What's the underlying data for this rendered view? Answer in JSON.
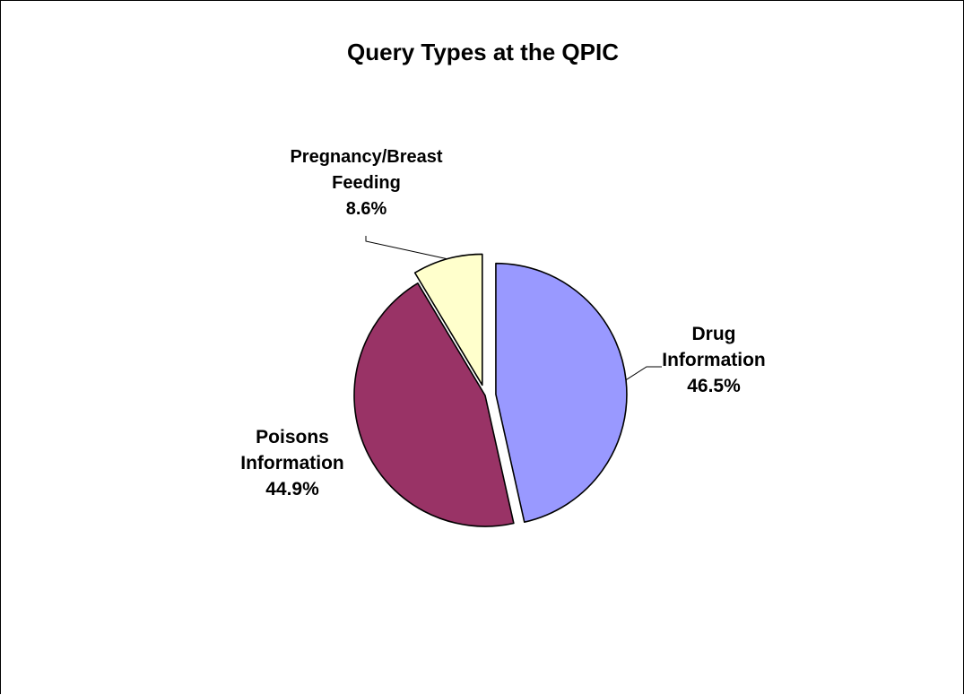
{
  "chart_data": {
    "type": "pie",
    "title": "Query Types at the QPIC",
    "slices": [
      {
        "label": [
          "Drug",
          "Information"
        ],
        "pct_text": "46.5%",
        "value": 46.5,
        "color": "#9999ff",
        "exploded": true
      },
      {
        "label": [
          "Poisons",
          "Information"
        ],
        "pct_text": "44.9%",
        "value": 44.9,
        "color": "#993366",
        "exploded": false
      },
      {
        "label": [
          "Pregnancy/Breast",
          "Feeding"
        ],
        "pct_text": "8.6%",
        "value": 8.6,
        "color": "#ffffcc",
        "exploded": true
      }
    ],
    "start_angle_deg": 0,
    "direction": "clockwise",
    "legend": "none",
    "data_labels": "category and percent"
  }
}
